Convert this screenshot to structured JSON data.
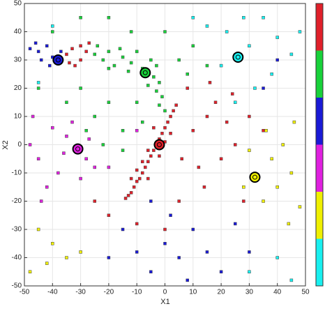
{
  "chart_data": {
    "type": "scatter",
    "xlabel": "X1",
    "ylabel": "X2",
    "xlim": [
      -50,
      50
    ],
    "ylim": [
      -50,
      50
    ],
    "xticks": [
      -50,
      -40,
      -30,
      -20,
      -10,
      0,
      10,
      20,
      30,
      40,
      50
    ],
    "yticks": [
      -50,
      -40,
      -30,
      -20,
      -10,
      0,
      10,
      20,
      30,
      40,
      50
    ],
    "grid": true,
    "colorbar": [
      "#e0202a",
      "#18d23a",
      "#1a1ad6",
      "#e020e0",
      "#f0f000",
      "#18f0f0"
    ],
    "series": [
      {
        "color": "#e0202a",
        "x": [
          4,
          2,
          0,
          -2,
          -4,
          -6,
          -8,
          -10,
          -12,
          -14,
          3,
          1,
          -1,
          -3,
          -5,
          -7,
          -9,
          -11,
          -13,
          -2,
          -6,
          0,
          2,
          -8,
          -10,
          -4,
          -6,
          -12,
          -35,
          -33,
          -30,
          -28,
          -32,
          -27,
          -30,
          -34,
          10,
          15,
          20,
          25,
          12,
          18,
          22,
          8,
          30,
          14,
          5,
          -20,
          0,
          -25,
          28,
          35,
          16,
          -10,
          24,
          6
        ],
        "values": [
          14,
          10,
          6,
          2,
          -2,
          -6,
          -10,
          -13,
          -17,
          -19,
          12,
          8,
          4,
          0,
          -4,
          -8,
          -12,
          -15,
          -18,
          -4,
          -2,
          1,
          4,
          -6,
          -9,
          6,
          -12,
          -12,
          32,
          34,
          30,
          33,
          28,
          36,
          35,
          29,
          5,
          10,
          -5,
          0,
          -8,
          15,
          8,
          20,
          10,
          -15,
          -20,
          -25,
          -30,
          -20,
          -20,
          5,
          22,
          -28,
          18,
          -5
        ]
      },
      {
        "color": "#18d23a",
        "x": [
          -25,
          -22,
          -20,
          -18,
          -15,
          -12,
          -10,
          -8,
          -5,
          -3,
          -4,
          -2,
          -3,
          -1,
          -2,
          0,
          -6,
          -16,
          -20,
          -13,
          -24,
          -30,
          -25,
          -15,
          -20,
          -10,
          5,
          10,
          -35,
          -28,
          -40,
          -20,
          0,
          15,
          -15,
          -22,
          -30,
          8,
          -45,
          -12,
          -8
        ],
        "values": [
          32,
          30,
          33,
          28,
          31,
          29,
          33,
          27,
          30,
          28,
          24,
          22,
          19,
          17,
          14,
          12,
          21,
          34,
          27,
          26,
          35,
          20,
          10,
          5,
          15,
          15,
          30,
          35,
          15,
          5,
          40,
          45,
          40,
          28,
          -2,
          0,
          45,
          25,
          20,
          40,
          8
        ]
      },
      {
        "color": "#1a1ad6",
        "x": [
          -45,
          -42,
          -48,
          -40,
          -44,
          -37,
          -46,
          -41,
          0,
          -5,
          5,
          10,
          -10,
          -15,
          8,
          -20,
          15,
          2,
          20,
          25,
          35,
          40,
          -5,
          30
        ],
        "values": [
          33,
          35,
          34,
          31,
          30,
          33,
          36,
          28,
          -35,
          -45,
          -40,
          -30,
          -38,
          -30,
          -48,
          -40,
          -38,
          -25,
          -45,
          -28,
          20,
          30,
          -20,
          -38
        ]
      },
      {
        "color": "#e020e0",
        "x": [
          -31,
          -35,
          -28,
          -40,
          -45,
          -38,
          -48,
          -25,
          -42,
          -33,
          -36,
          -30,
          -47,
          -27,
          -44,
          -10,
          -20
        ],
        "values": [
          -1,
          3,
          -5,
          6,
          -5,
          -10,
          0,
          -8,
          -15,
          8,
          -3,
          -12,
          10,
          2,
          -20,
          5,
          -8
        ]
      },
      {
        "color": "#f0f000",
        "x": [
          -40,
          -45,
          -35,
          -48,
          -30,
          -42,
          32,
          38,
          40,
          35,
          45,
          30,
          42,
          48,
          36,
          44,
          28,
          46
        ],
        "values": [
          -35,
          -30,
          -40,
          -45,
          -38,
          -42,
          -11,
          -5,
          -15,
          -20,
          -10,
          -2,
          0,
          -22,
          5,
          -28,
          -15,
          8
        ]
      },
      {
        "color": "#18f0f0",
        "x": [
          26,
          30,
          22,
          35,
          40,
          20,
          45,
          28,
          38,
          15,
          48,
          32,
          25,
          40,
          30,
          45,
          -45,
          -40,
          10
        ],
        "values": [
          31,
          35,
          40,
          45,
          38,
          28,
          32,
          45,
          25,
          42,
          40,
          20,
          15,
          -40,
          -45,
          -48,
          22,
          42,
          45
        ]
      },
      {
        "marker": "circle",
        "colors": [
          "#e0202a",
          "#18d23a",
          "#1a1ad6",
          "#e020e0",
          "#f0f000",
          "#18f0f0"
        ],
        "x": [
          -2,
          -7,
          -38,
          -31,
          32,
          26
        ],
        "values": [
          0,
          25.5,
          30,
          -1.5,
          -11.5,
          31
        ]
      }
    ]
  }
}
